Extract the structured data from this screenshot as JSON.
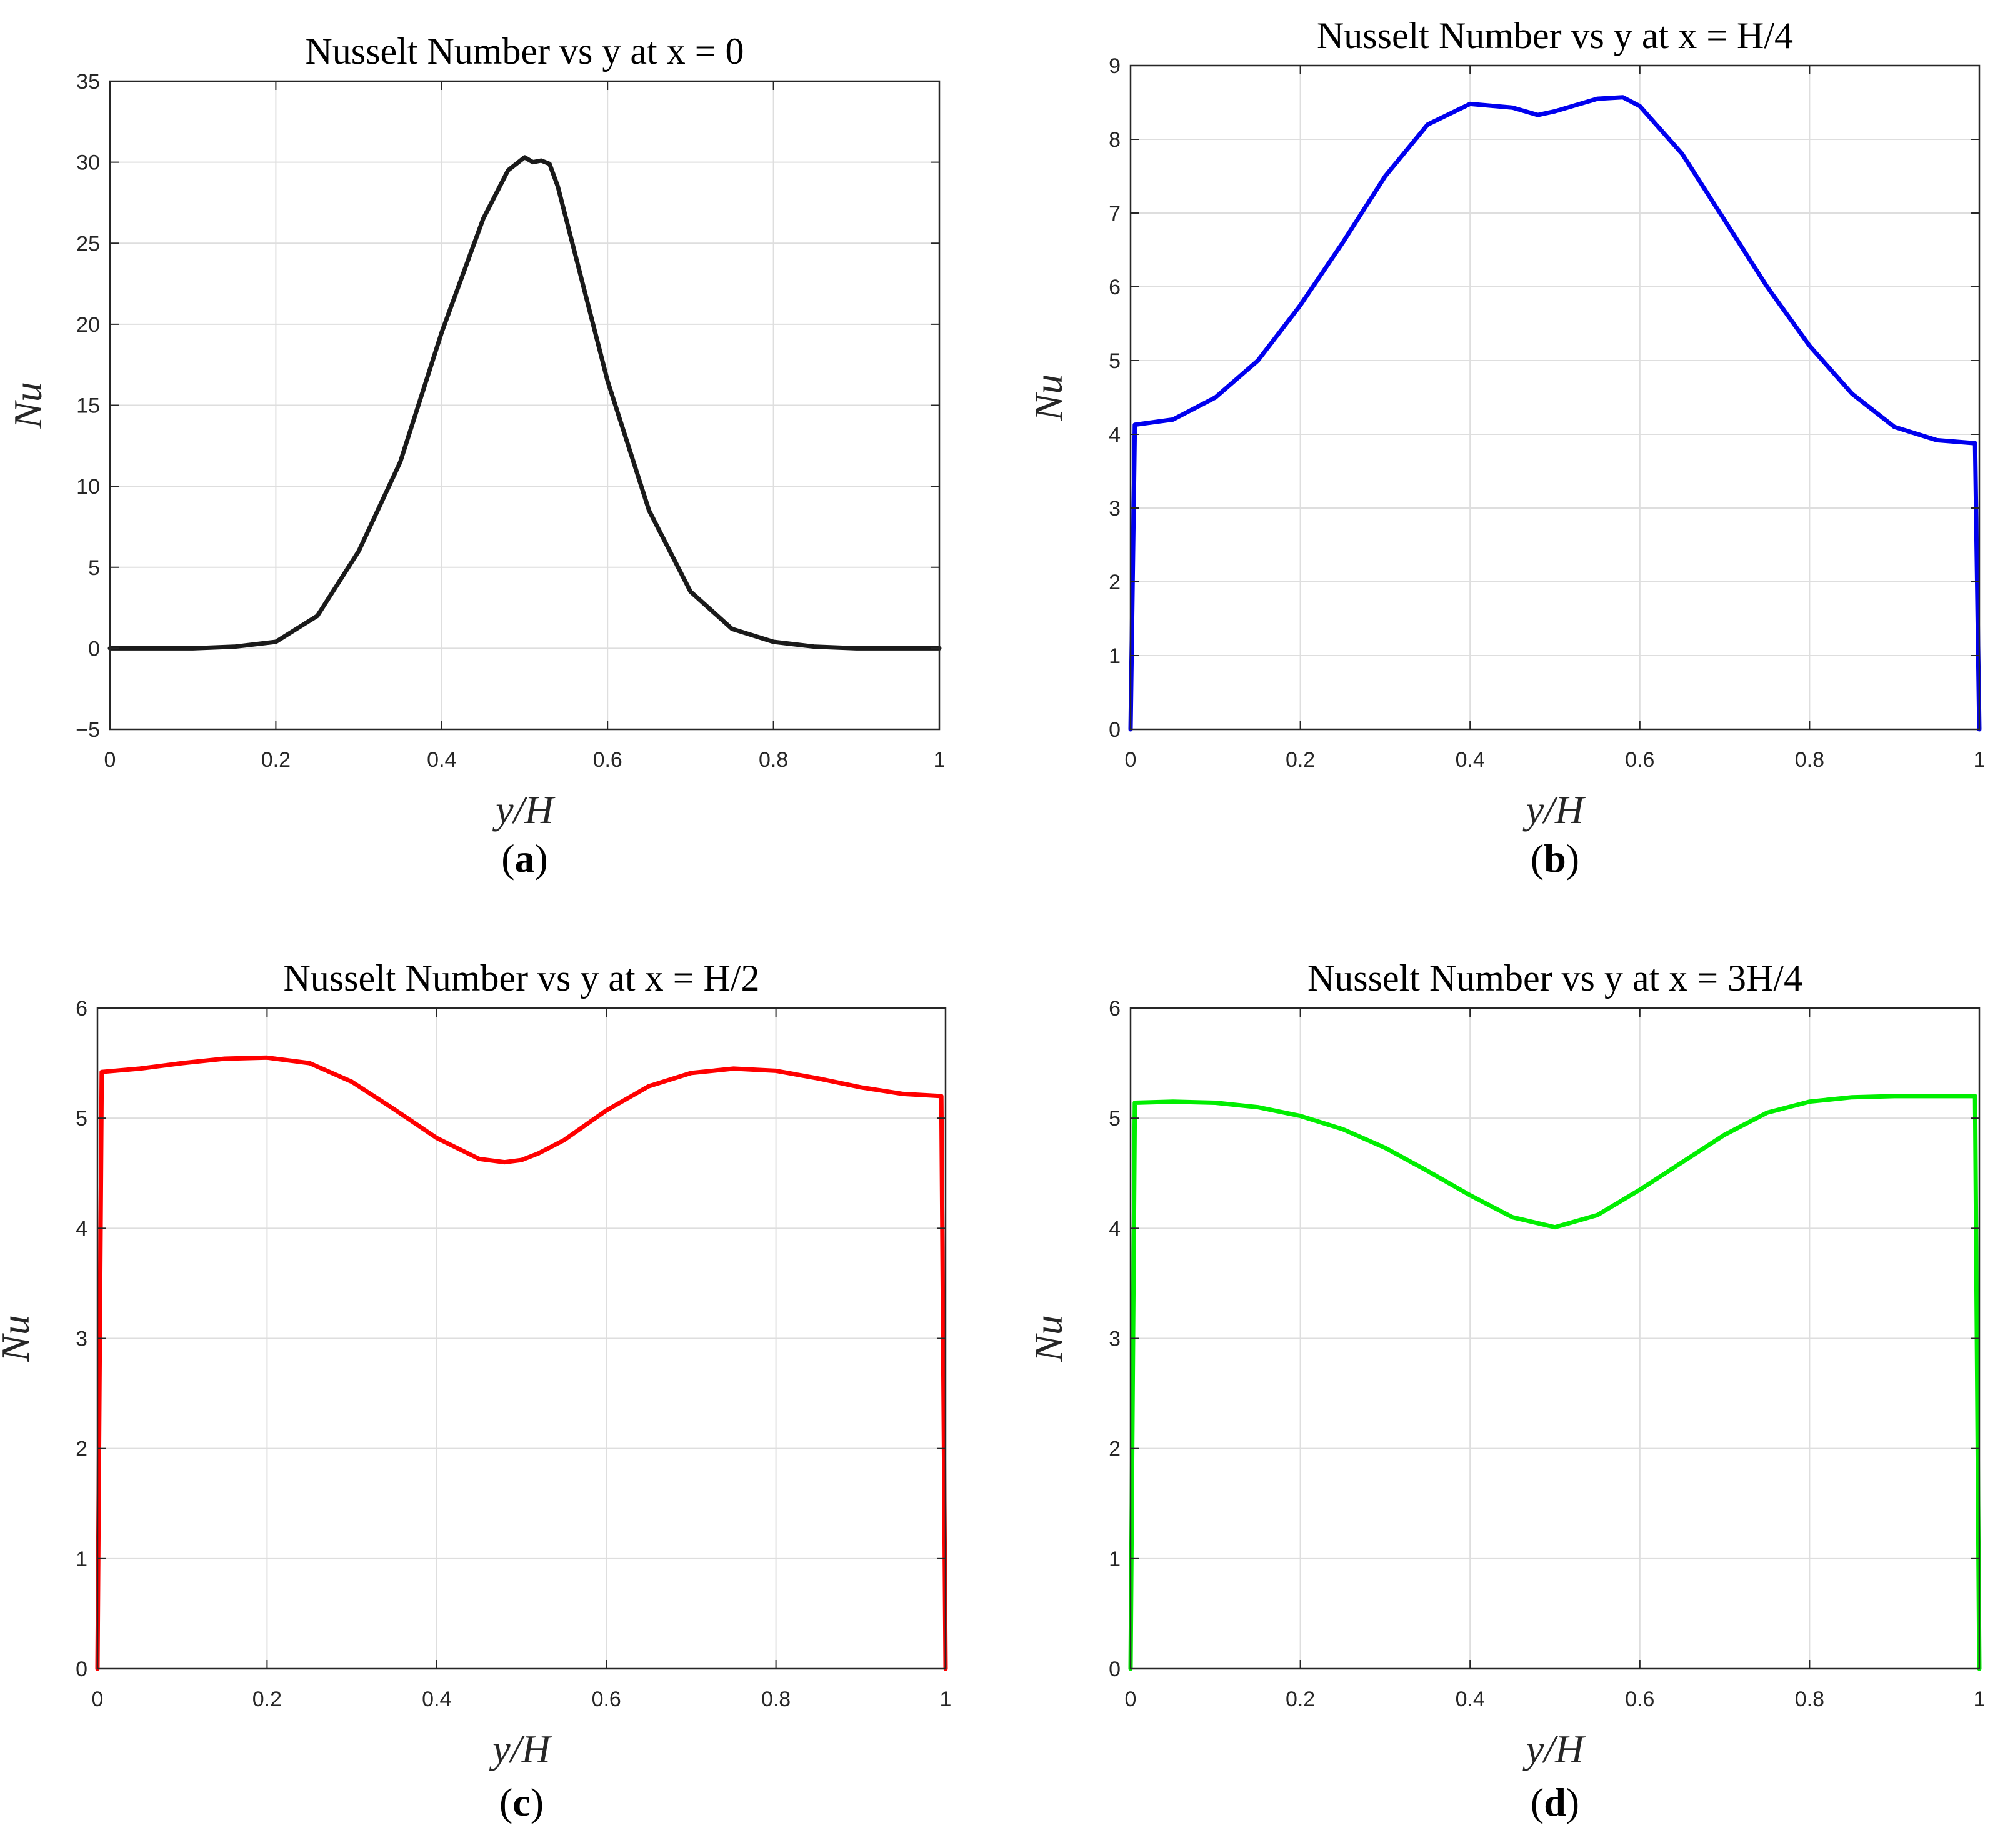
{
  "chart_data": [
    {
      "type": "line",
      "panel": "(a)",
      "panel_letter": "a",
      "title": "Nusselt Number vs y at x = 0",
      "xlabel": "y/H",
      "ylabel": "Nu",
      "xlim": [
        0,
        1
      ],
      "ylim": [
        -5,
        35
      ],
      "xticks": [
        0,
        0.2,
        0.4,
        0.6,
        0.8,
        1
      ],
      "xtick_labels": [
        "0",
        "0.2",
        "0.4",
        "0.6",
        "0.8",
        "1"
      ],
      "yticks": [
        -5,
        0,
        5,
        10,
        15,
        20,
        25,
        30,
        35
      ],
      "ytick_labels": [
        "−5",
        "0",
        "5",
        "10",
        "15",
        "20",
        "25",
        "30",
        "35"
      ],
      "grid": true,
      "color": "#1a1a1a",
      "series": [
        {
          "name": "Nu",
          "x": [
            0,
            0.05,
            0.1,
            0.15,
            0.2,
            0.25,
            0.3,
            0.35,
            0.4,
            0.45,
            0.48,
            0.5,
            0.51,
            0.52,
            0.53,
            0.54,
            0.55,
            0.6,
            0.65,
            0.7,
            0.75,
            0.8,
            0.85,
            0.9,
            0.95,
            1
          ],
          "y": [
            0,
            0,
            0,
            0.1,
            0.4,
            2,
            6,
            11.5,
            19.5,
            26.5,
            29.5,
            30.3,
            30.0,
            30.1,
            29.9,
            28.5,
            26.5,
            16.5,
            8.5,
            3.5,
            1.2,
            0.4,
            0.1,
            0,
            0,
            0
          ]
        }
      ]
    },
    {
      "type": "line",
      "panel": "(b)",
      "panel_letter": "b",
      "title": "Nusselt Number vs y at x = H/4",
      "xlabel": "y/H",
      "ylabel": "Nu",
      "xlim": [
        0,
        1
      ],
      "ylim": [
        0,
        9
      ],
      "xticks": [
        0,
        0.2,
        0.4,
        0.6,
        0.8,
        1
      ],
      "xtick_labels": [
        "0",
        "0.2",
        "0.4",
        "0.6",
        "0.8",
        "1"
      ],
      "yticks": [
        0,
        1,
        2,
        3,
        4,
        5,
        6,
        7,
        8,
        9
      ],
      "ytick_labels": [
        "0",
        "1",
        "2",
        "3",
        "4",
        "5",
        "6",
        "7",
        "8",
        "9"
      ],
      "grid": true,
      "color": "#0000ee",
      "series": [
        {
          "name": "Nu",
          "x": [
            0,
            0.005,
            0.05,
            0.1,
            0.15,
            0.2,
            0.25,
            0.3,
            0.35,
            0.4,
            0.45,
            0.48,
            0.5,
            0.55,
            0.58,
            0.6,
            0.65,
            0.7,
            0.75,
            0.8,
            0.85,
            0.9,
            0.95,
            0.995,
            1
          ],
          "y": [
            0,
            4.13,
            4.2,
            4.5,
            5.0,
            5.75,
            6.6,
            7.5,
            8.2,
            8.48,
            8.43,
            8.33,
            8.38,
            8.55,
            8.57,
            8.45,
            7.8,
            6.9,
            6.0,
            5.2,
            4.55,
            4.1,
            3.92,
            3.88,
            0
          ]
        }
      ]
    },
    {
      "type": "line",
      "panel": "(c)",
      "panel_letter": "c",
      "title": "Nusselt Number vs y at x = H/2",
      "xlabel": "y/H",
      "ylabel": "Nu",
      "xlim": [
        0,
        1
      ],
      "ylim": [
        0,
        6
      ],
      "xticks": [
        0,
        0.2,
        0.4,
        0.6,
        0.8,
        1
      ],
      "xtick_labels": [
        "0",
        "0.2",
        "0.4",
        "0.6",
        "0.8",
        "1"
      ],
      "yticks": [
        0,
        1,
        2,
        3,
        4,
        5,
        6
      ],
      "ytick_labels": [
        "0",
        "1",
        "2",
        "3",
        "4",
        "5",
        "6"
      ],
      "grid": true,
      "color": "#ff0000",
      "series": [
        {
          "name": "Nu",
          "x": [
            0,
            0.005,
            0.05,
            0.1,
            0.15,
            0.2,
            0.25,
            0.3,
            0.35,
            0.4,
            0.45,
            0.48,
            0.5,
            0.52,
            0.55,
            0.6,
            0.65,
            0.7,
            0.75,
            0.8,
            0.85,
            0.9,
            0.95,
            0.995,
            1
          ],
          "y": [
            0,
            5.42,
            5.45,
            5.5,
            5.54,
            5.55,
            5.5,
            5.33,
            5.08,
            4.82,
            4.63,
            4.6,
            4.62,
            4.68,
            4.8,
            5.07,
            5.29,
            5.41,
            5.45,
            5.43,
            5.36,
            5.28,
            5.22,
            5.2,
            0
          ]
        }
      ]
    },
    {
      "type": "line",
      "panel": "(d)",
      "panel_letter": "d",
      "title": "Nusselt Number vs y at x = 3H/4",
      "xlabel": "y/H",
      "ylabel": "Nu",
      "xlim": [
        0,
        1
      ],
      "ylim": [
        0,
        6
      ],
      "xticks": [
        0,
        0.2,
        0.4,
        0.6,
        0.8,
        1
      ],
      "xtick_labels": [
        "0",
        "0.2",
        "0.4",
        "0.6",
        "0.8",
        "1"
      ],
      "yticks": [
        0,
        1,
        2,
        3,
        4,
        5,
        6
      ],
      "ytick_labels": [
        "0",
        "1",
        "2",
        "3",
        "4",
        "5",
        "6"
      ],
      "grid": true,
      "color": "#00ee00",
      "series": [
        {
          "name": "Nu",
          "x": [
            0,
            0.005,
            0.05,
            0.1,
            0.15,
            0.2,
            0.25,
            0.3,
            0.35,
            0.4,
            0.45,
            0.5,
            0.55,
            0.6,
            0.65,
            0.7,
            0.75,
            0.8,
            0.85,
            0.9,
            0.95,
            0.995,
            1
          ],
          "y": [
            0,
            5.14,
            5.15,
            5.14,
            5.1,
            5.02,
            4.9,
            4.73,
            4.52,
            4.3,
            4.1,
            4.01,
            4.12,
            4.35,
            4.6,
            4.85,
            5.05,
            5.15,
            5.19,
            5.2,
            5.2,
            5.2,
            0
          ]
        }
      ]
    }
  ]
}
